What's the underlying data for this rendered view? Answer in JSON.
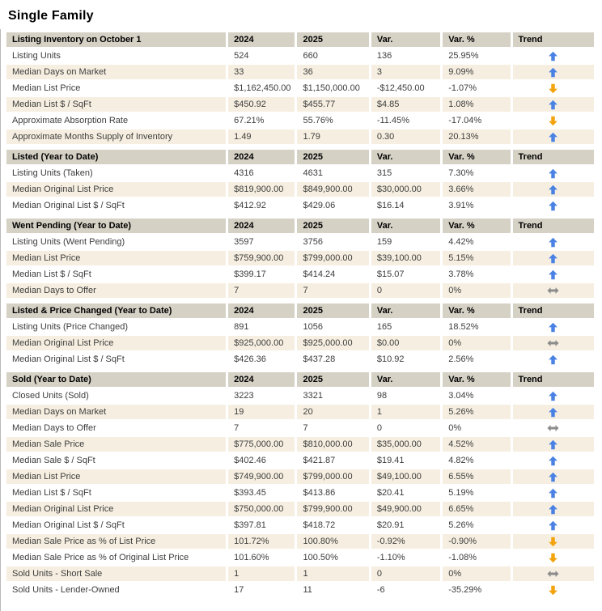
{
  "page": {
    "title": "Single Family"
  },
  "columns": {
    "y2024": "2024",
    "y2025": "2025",
    "var": "Var.",
    "var_pct": "Var. %",
    "trend": "Trend"
  },
  "colors": {
    "header_bg": "#d5d1c5",
    "row_bg": "#ffffff",
    "row_alt_bg": "#f6efe1",
    "text": "#3d3d3d",
    "trend_up": "#4a82e4",
    "trend_down": "#f2a30d",
    "trend_flat": "#8c8c8c"
  },
  "sections": [
    {
      "title": "Listing Inventory on October 1",
      "rows": [
        {
          "label": "Listing Units",
          "y2024": "524",
          "y2025": "660",
          "var": "136",
          "var_pct": "25.95%",
          "trend": "up"
        },
        {
          "label": "Median Days on Market",
          "y2024": "33",
          "y2025": "36",
          "var": "3",
          "var_pct": "9.09%",
          "trend": "up"
        },
        {
          "label": "Median List Price",
          "y2024": "$1,162,450.00",
          "y2025": "$1,150,000.00",
          "var": "-$12,450.00",
          "var_pct": "-1.07%",
          "trend": "down"
        },
        {
          "label": "Median List $ / SqFt",
          "y2024": "$450.92",
          "y2025": "$455.77",
          "var": "$4.85",
          "var_pct": "1.08%",
          "trend": "up"
        },
        {
          "label": "Approximate Absorption Rate",
          "y2024": "67.21%",
          "y2025": "55.76%",
          "var": "-11.45%",
          "var_pct": "-17.04%",
          "trend": "down"
        },
        {
          "label": "Approximate Months Supply of Inventory",
          "y2024": "1.49",
          "y2025": "1.79",
          "var": "0.30",
          "var_pct": "20.13%",
          "trend": "up"
        }
      ]
    },
    {
      "title": "Listed (Year to Date)",
      "rows": [
        {
          "label": "Listing Units (Taken)",
          "y2024": "4316",
          "y2025": "4631",
          "var": "315",
          "var_pct": "7.30%",
          "trend": "up"
        },
        {
          "label": "Median Original List Price",
          "y2024": "$819,900.00",
          "y2025": "$849,900.00",
          "var": "$30,000.00",
          "var_pct": "3.66%",
          "trend": "up"
        },
        {
          "label": "Median Original List $ / SqFt",
          "y2024": "$412.92",
          "y2025": "$429.06",
          "var": "$16.14",
          "var_pct": "3.91%",
          "trend": "up"
        }
      ]
    },
    {
      "title": "Went Pending (Year to Date)",
      "rows": [
        {
          "label": "Listing Units (Went Pending)",
          "y2024": "3597",
          "y2025": "3756",
          "var": "159",
          "var_pct": "4.42%",
          "trend": "up"
        },
        {
          "label": "Median List Price",
          "y2024": "$759,900.00",
          "y2025": "$799,000.00",
          "var": "$39,100.00",
          "var_pct": "5.15%",
          "trend": "up"
        },
        {
          "label": "Median List $ / SqFt",
          "y2024": "$399.17",
          "y2025": "$414.24",
          "var": "$15.07",
          "var_pct": "3.78%",
          "trend": "up"
        },
        {
          "label": "Median Days to Offer",
          "y2024": "7",
          "y2025": "7",
          "var": "0",
          "var_pct": "0%",
          "trend": "flat"
        }
      ]
    },
    {
      "title": "Listed & Price Changed (Year to Date)",
      "rows": [
        {
          "label": "Listing Units (Price Changed)",
          "y2024": "891",
          "y2025": "1056",
          "var": "165",
          "var_pct": "18.52%",
          "trend": "up"
        },
        {
          "label": "Median Original List Price",
          "y2024": "$925,000.00",
          "y2025": "$925,000.00",
          "var": "$0.00",
          "var_pct": "0%",
          "trend": "flat"
        },
        {
          "label": "Median Original List $ / SqFt",
          "y2024": "$426.36",
          "y2025": "$437.28",
          "var": "$10.92",
          "var_pct": "2.56%",
          "trend": "up"
        }
      ]
    },
    {
      "title": "Sold (Year to Date)",
      "rows": [
        {
          "label": "Closed Units (Sold)",
          "y2024": "3223",
          "y2025": "3321",
          "var": "98",
          "var_pct": "3.04%",
          "trend": "up"
        },
        {
          "label": "Median Days on Market",
          "y2024": "19",
          "y2025": "20",
          "var": "1",
          "var_pct": "5.26%",
          "trend": "up"
        },
        {
          "label": "Median Days to Offer",
          "y2024": "7",
          "y2025": "7",
          "var": "0",
          "var_pct": "0%",
          "trend": "flat"
        },
        {
          "label": "Median Sale Price",
          "y2024": "$775,000.00",
          "y2025": "$810,000.00",
          "var": "$35,000.00",
          "var_pct": "4.52%",
          "trend": "up"
        },
        {
          "label": "Median Sale $ / SqFt",
          "y2024": "$402.46",
          "y2025": "$421.87",
          "var": "$19.41",
          "var_pct": "4.82%",
          "trend": "up"
        },
        {
          "label": "Median List Price",
          "y2024": "$749,900.00",
          "y2025": "$799,000.00",
          "var": "$49,100.00",
          "var_pct": "6.55%",
          "trend": "up"
        },
        {
          "label": "Median List $ / SqFt",
          "y2024": "$393.45",
          "y2025": "$413.86",
          "var": "$20.41",
          "var_pct": "5.19%",
          "trend": "up"
        },
        {
          "label": "Median Original List Price",
          "y2024": "$750,000.00",
          "y2025": "$799,900.00",
          "var": "$49,900.00",
          "var_pct": "6.65%",
          "trend": "up"
        },
        {
          "label": "Median Original List $ / SqFt",
          "y2024": "$397.81",
          "y2025": "$418.72",
          "var": "$20.91",
          "var_pct": "5.26%",
          "trend": "up"
        },
        {
          "label": "Median Sale Price as % of List Price",
          "y2024": "101.72%",
          "y2025": "100.80%",
          "var": "-0.92%",
          "var_pct": "-0.90%",
          "trend": "down"
        },
        {
          "label": "Median Sale Price as % of Original List Price",
          "y2024": "101.60%",
          "y2025": "100.50%",
          "var": "-1.10%",
          "var_pct": "-1.08%",
          "trend": "down"
        },
        {
          "label": "Sold Units - Short Sale",
          "y2024": "1",
          "y2025": "1",
          "var": "0",
          "var_pct": "0%",
          "trend": "flat"
        },
        {
          "label": "Sold Units - Lender-Owned",
          "y2024": "17",
          "y2025": "11",
          "var": "-6",
          "var_pct": "-35.29%",
          "trend": "down"
        }
      ]
    }
  ]
}
